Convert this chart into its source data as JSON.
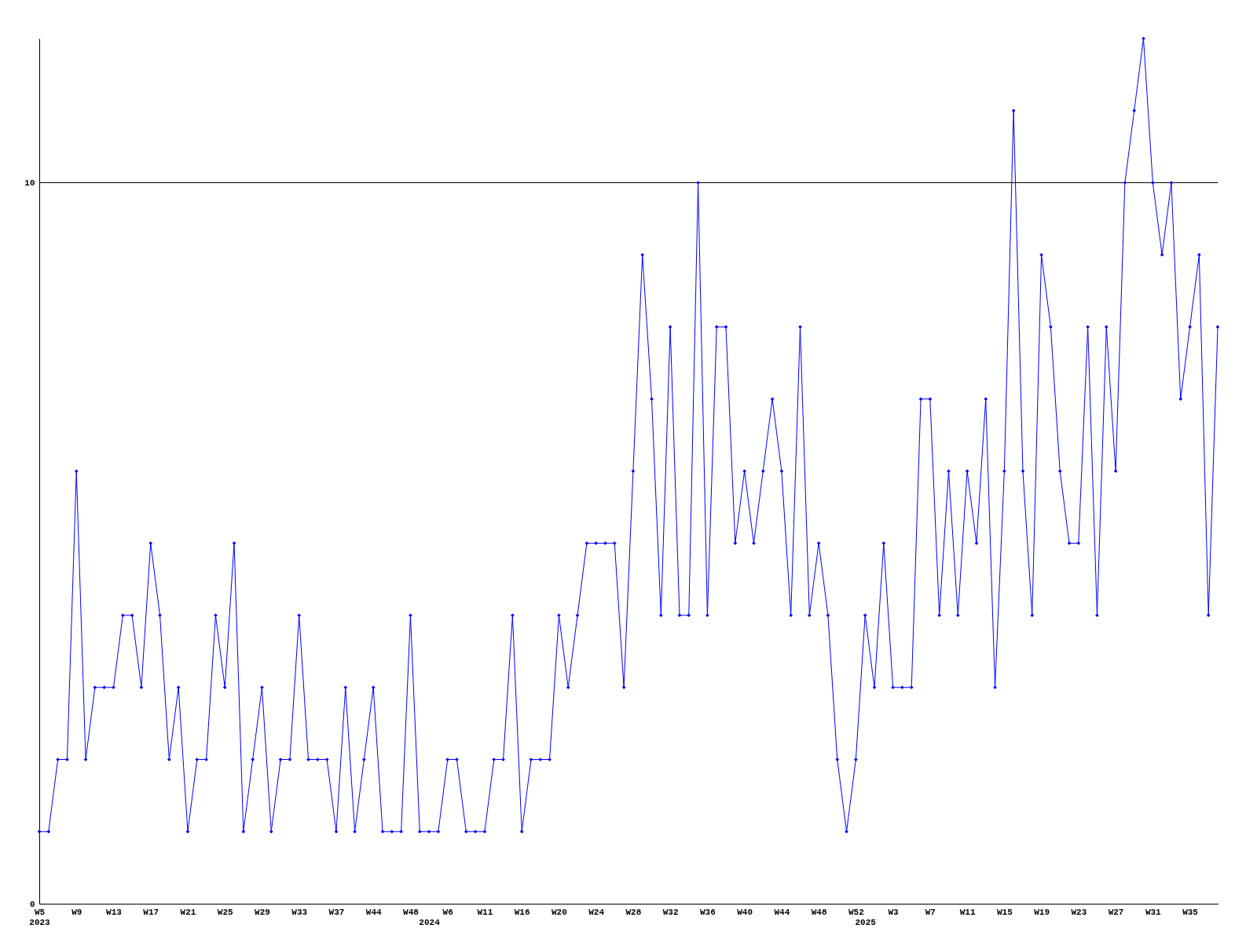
{
  "chart_data": {
    "type": "line",
    "categories": [
      "W5\n2023",
      null,
      null,
      null,
      "W9",
      null,
      null,
      null,
      "W13",
      null,
      null,
      null,
      "W17",
      null,
      null,
      null,
      "W21",
      null,
      null,
      null,
      "W25",
      null,
      null,
      null,
      "W29",
      null,
      null,
      null,
      "W33",
      null,
      null,
      null,
      "W37",
      null,
      null,
      null,
      "W44",
      null,
      null,
      null,
      "W48",
      null,
      "\n2024",
      null,
      "W6",
      null,
      null,
      null,
      "W11",
      null,
      null,
      null,
      "W16",
      null,
      null,
      null,
      "W20",
      null,
      null,
      null,
      "W24",
      null,
      null,
      null,
      "W28",
      null,
      null,
      null,
      "W32",
      null,
      null,
      null,
      "W36",
      null,
      null,
      null,
      "W40",
      null,
      null,
      null,
      "W44",
      null,
      null,
      null,
      "W48",
      null,
      null,
      null,
      "W52",
      "\n2025",
      null,
      null,
      "W3",
      null,
      null,
      null,
      "W7",
      null,
      null,
      null,
      "W11",
      null,
      null,
      null,
      "W15",
      null,
      null,
      null,
      "W19",
      null,
      null,
      null,
      "W23",
      null,
      null,
      null,
      "W27",
      null,
      null,
      null,
      "W31",
      null,
      null,
      null,
      "W35",
      null,
      null,
      null
    ],
    "series": [
      {
        "color": "#0000ff",
        "values": [
          1,
          1,
          2,
          2,
          6,
          2,
          3,
          3,
          3,
          4,
          4,
          3,
          5,
          4,
          2,
          3,
          1,
          2,
          2,
          4,
          3,
          5,
          1,
          2,
          3,
          1,
          2,
          2,
          4,
          2,
          2,
          2,
          1,
          3,
          1,
          2,
          3,
          1,
          1,
          1,
          4,
          1,
          1,
          1,
          2,
          2,
          1,
          1,
          1,
          2,
          2,
          4,
          1,
          2,
          2,
          2,
          4,
          3,
          4,
          5,
          5,
          5,
          5,
          3,
          6,
          9,
          7,
          4,
          8,
          4,
          4,
          10,
          4,
          8,
          8,
          5,
          6,
          5,
          6,
          7,
          6,
          4,
          8,
          4,
          5,
          4,
          2,
          1,
          2,
          4,
          3,
          5,
          3,
          3,
          3,
          7,
          7,
          4,
          6,
          4,
          6,
          5,
          7,
          3,
          6,
          11,
          6,
          4,
          9,
          8,
          6,
          5,
          5,
          8,
          4,
          8,
          6,
          10,
          11,
          12,
          10,
          9,
          10,
          7,
          8,
          9,
          4,
          8
        ]
      }
    ],
    "ylim": [
      0,
      12
    ],
    "yticks": [
      0,
      10
    ],
    "grid": "y",
    "marker": "diamond",
    "line_style": "solid"
  }
}
